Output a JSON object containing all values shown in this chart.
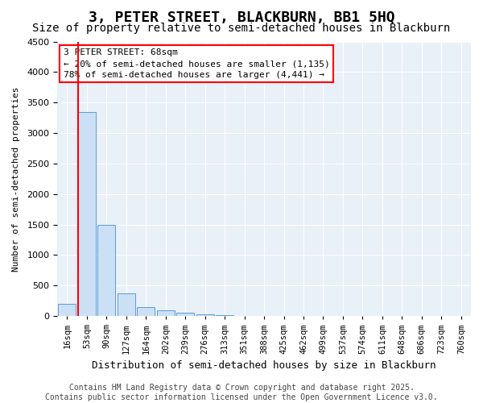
{
  "title": "3, PETER STREET, BLACKBURN, BB1 5HQ",
  "subtitle": "Size of property relative to semi-detached houses in Blackburn",
  "xlabel": "Distribution of semi-detached houses by size in Blackburn",
  "ylabel": "Number of semi-detached properties",
  "bins": [
    "16sqm",
    "53sqm",
    "90sqm",
    "127sqm",
    "164sqm",
    "202sqm",
    "239sqm",
    "276sqm",
    "313sqm",
    "351sqm",
    "388sqm",
    "425sqm",
    "462sqm",
    "499sqm",
    "537sqm",
    "574sqm",
    "611sqm",
    "648sqm",
    "686sqm",
    "723sqm",
    "760sqm"
  ],
  "values": [
    200,
    3350,
    1500,
    370,
    150,
    90,
    60,
    30,
    10,
    0,
    0,
    0,
    0,
    0,
    0,
    0,
    0,
    0,
    0,
    0,
    0
  ],
  "bar_color": "#cce0f5",
  "bar_edge_color": "#5b9bd5",
  "red_line_x": 0.55,
  "annotation_line1": "3 PETER STREET: 68sqm",
  "annotation_line2": "← 20% of semi-detached houses are smaller (1,135)",
  "annotation_line3": "78% of semi-detached houses are larger (4,441) →",
  "ylim": [
    0,
    4500
  ],
  "yticks": [
    0,
    500,
    1000,
    1500,
    2000,
    2500,
    3000,
    3500,
    4000,
    4500
  ],
  "plot_background": "#e8f0f8",
  "footer": "Contains HM Land Registry data © Crown copyright and database right 2025.\nContains public sector information licensed under the Open Government Licence v3.0.",
  "title_fontsize": 13,
  "subtitle_fontsize": 10,
  "annotation_fontsize": 8.0,
  "footer_fontsize": 7.0
}
